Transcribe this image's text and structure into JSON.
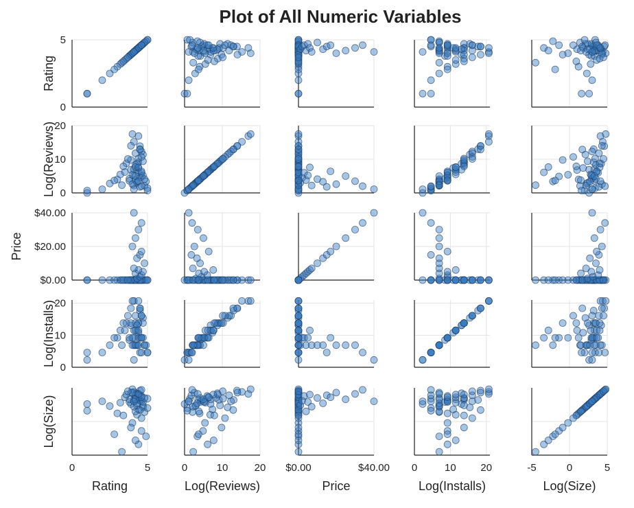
{
  "chart_data": {
    "type": "scatter",
    "subtype": "scatter-matrix",
    "title": "Plot of All Numeric Variables",
    "variables": [
      "Rating",
      "Log(Reviews)",
      "Price",
      "Log(Installs)",
      "Log(Size)"
    ],
    "ranges": {
      "Rating": [
        0,
        5
      ],
      "Log(Reviews)": [
        0,
        20
      ],
      "Price": [
        0,
        40
      ],
      "Log(Installs)": [
        0,
        21
      ],
      "Log(Size)": [
        -5,
        5
      ]
    },
    "row_ticks": [
      {
        "variable": "Rating",
        "ticks": [
          {
            "value": 0,
            "label": "0"
          },
          {
            "value": 5,
            "label": "5"
          }
        ]
      },
      {
        "variable": "Log(Reviews)",
        "ticks": [
          {
            "value": 0,
            "label": "0"
          },
          {
            "value": 10,
            "label": "10"
          },
          {
            "value": 20,
            "label": "20"
          }
        ]
      },
      {
        "variable": "Price",
        "ticks": [
          {
            "value": 0,
            "label": "$0.00"
          },
          {
            "value": 20,
            "label": "$20.00"
          },
          {
            "value": 40,
            "label": "$40.00"
          }
        ]
      },
      {
        "variable": "Log(Installs)",
        "ticks": [
          {
            "value": 0,
            "label": "0"
          },
          {
            "value": 10,
            "label": "10"
          },
          {
            "value": 20,
            "label": "20"
          }
        ]
      },
      {
        "variable": "Log(Size)",
        "ticks": []
      }
    ],
    "col_ticks": [
      {
        "variable": "Rating",
        "ticks": [
          {
            "value": 0,
            "label": "0"
          },
          {
            "value": 5,
            "label": "5"
          }
        ]
      },
      {
        "variable": "Log(Reviews)",
        "ticks": [
          {
            "value": 0,
            "label": "0"
          },
          {
            "value": 10,
            "label": "10"
          },
          {
            "value": 20,
            "label": "20"
          }
        ]
      },
      {
        "variable": "Price",
        "ticks": [
          {
            "value": 0,
            "label": "$0.00"
          },
          {
            "value": 40,
            "label": "$40.00"
          }
        ]
      },
      {
        "variable": "Log(Installs)",
        "ticks": [
          {
            "value": 0,
            "label": "0"
          },
          {
            "value": 10,
            "label": "10"
          },
          {
            "value": 20,
            "label": "20"
          }
        ]
      },
      {
        "variable": "Log(Size)",
        "ticks": [
          {
            "value": -5,
            "label": "-5"
          },
          {
            "value": 0,
            "label": "0"
          },
          {
            "value": 5,
            "label": "5"
          }
        ]
      }
    ],
    "marker_color": "#3a7dc0",
    "marker_edge": "#1f3f66",
    "grid": true,
    "legend": "none",
    "sample_points": [
      {
        "Rating": 4.1,
        "Log(Reviews)": 5.1,
        "Price": 0,
        "Log(Installs)": 9.2,
        "Log(Size)": 3.0
      },
      {
        "Rating": 3.9,
        "Log(Reviews)": 6.9,
        "Price": 0,
        "Log(Installs)": 13.1,
        "Log(Size)": 2.6
      },
      {
        "Rating": 4.7,
        "Log(Reviews)": 11.4,
        "Price": 0,
        "Log(Installs)": 15.4,
        "Log(Size)": 2.1
      },
      {
        "Rating": 4.5,
        "Log(Reviews)": 13.0,
        "Price": 0,
        "Log(Installs)": 17.7,
        "Log(Size)": 3.2
      },
      {
        "Rating": 4.3,
        "Log(Reviews)": 6.8,
        "Price": 0,
        "Log(Installs)": 11.5,
        "Log(Size)": 1.0
      },
      {
        "Rating": 4.4,
        "Log(Reviews)": 7.4,
        "Price": 0,
        "Log(Installs)": 10.8,
        "Log(Size)": 1.8
      },
      {
        "Rating": 3.8,
        "Log(Reviews)": 4.2,
        "Price": 0,
        "Log(Installs)": 8.5,
        "Log(Size)": 2.9
      },
      {
        "Rating": 4.1,
        "Log(Reviews)": 7.0,
        "Price": 0,
        "Log(Installs)": 11.5,
        "Log(Size)": 3.3
      },
      {
        "Rating": 4.4,
        "Log(Reviews)": 9.1,
        "Price": 0,
        "Log(Installs)": 13.8,
        "Log(Size)": 3.2
      },
      {
        "Rating": 4.7,
        "Log(Reviews)": 9.4,
        "Price": 0,
        "Log(Installs)": 13.8,
        "Log(Size)": 2.4
      },
      {
        "Rating": 4.4,
        "Log(Reviews)": 10.2,
        "Price": 0,
        "Log(Installs)": 13.8,
        "Log(Size)": 3.4
      },
      {
        "Rating": 3.8,
        "Log(Reviews)": 3.6,
        "Price": 0,
        "Log(Installs)": 9.2,
        "Log(Size)": 3.3
      },
      {
        "Rating": 4.2,
        "Log(Reviews)": 8.3,
        "Price": 0,
        "Log(Installs)": 13.8,
        "Log(Size)": 3.5
      },
      {
        "Rating": 4.6,
        "Log(Reviews)": 12.3,
        "Price": 0,
        "Log(Installs)": 16.1,
        "Log(Size)": 3.0
      },
      {
        "Rating": 4.0,
        "Log(Reviews)": 5.4,
        "Price": 0,
        "Log(Installs)": 9.2,
        "Log(Size)": -0.2
      },
      {
        "Rating": 4.3,
        "Log(Reviews)": 8.7,
        "Price": 0,
        "Log(Installs)": 13.1,
        "Log(Size)": 4.2
      },
      {
        "Rating": 4.5,
        "Log(Reviews)": 13.9,
        "Price": 0,
        "Log(Installs)": 18.4,
        "Log(Size)": 4.6
      },
      {
        "Rating": 4.1,
        "Log(Reviews)": 15.2,
        "Price": 0,
        "Log(Installs)": 20.7,
        "Log(Size)": 4.4
      },
      {
        "Rating": 4.4,
        "Log(Reviews)": 16.9,
        "Price": 0,
        "Log(Installs)": 20.7,
        "Log(Size)": 4.1
      },
      {
        "Rating": 4.0,
        "Log(Reviews)": 17.5,
        "Price": 0,
        "Log(Installs)": 20.7,
        "Log(Size)": 4.8
      },
      {
        "Rating": 3.9,
        "Log(Reviews)": 14.0,
        "Price": 0,
        "Log(Installs)": 18.4,
        "Log(Size)": 4.3
      },
      {
        "Rating": 4.2,
        "Log(Reviews)": 11.8,
        "Price": 0,
        "Log(Installs)": 16.1,
        "Log(Size)": 3.9
      },
      {
        "Rating": 4.8,
        "Log(Reviews)": 2.1,
        "Price": 0,
        "Log(Installs)": 6.9,
        "Log(Size)": 1.4
      },
      {
        "Rating": 5.0,
        "Log(Reviews)": 0.7,
        "Price": 0,
        "Log(Installs)": 4.6,
        "Log(Size)": 2.0
      },
      {
        "Rating": 5.0,
        "Log(Reviews)": 1.4,
        "Price": 0,
        "Log(Installs)": 4.6,
        "Log(Size)": 3.4
      },
      {
        "Rating": 1.0,
        "Log(Reviews)": 0.0,
        "Price": 0,
        "Log(Installs)": 2.3,
        "Log(Size)": 2.6
      },
      {
        "Rating": 1.0,
        "Log(Reviews)": 0.7,
        "Price": 0,
        "Log(Installs)": 4.6,
        "Log(Size)": 1.6
      },
      {
        "Rating": 2.0,
        "Log(Reviews)": 1.1,
        "Price": 0,
        "Log(Installs)": 4.6,
        "Log(Size)": 3.0
      },
      {
        "Rating": 2.5,
        "Log(Reviews)": 2.8,
        "Price": 0,
        "Log(Installs)": 6.9,
        "Log(Size)": 2.3
      },
      {
        "Rating": 3.0,
        "Log(Reviews)": 4.0,
        "Price": 0,
        "Log(Installs)": 9.2,
        "Log(Size)": 1.2
      },
      {
        "Rating": 3.2,
        "Log(Reviews)": 5.5,
        "Price": 0,
        "Log(Installs)": 11.5,
        "Log(Size)": 2.8
      },
      {
        "Rating": 3.5,
        "Log(Reviews)": 6.2,
        "Price": 0,
        "Log(Installs)": 11.5,
        "Log(Size)": 3.6
      },
      {
        "Rating": 3.6,
        "Log(Reviews)": 8.8,
        "Price": 0,
        "Log(Installs)": 13.8,
        "Log(Size)": 4.0
      },
      {
        "Rating": 4.6,
        "Log(Reviews)": 4.9,
        "Price": 0,
        "Log(Installs)": 9.2,
        "Log(Size)": -1.4
      },
      {
        "Rating": 4.9,
        "Log(Reviews)": 3.4,
        "Price": 0,
        "Log(Installs)": 6.9,
        "Log(Size)": -2.2
      },
      {
        "Rating": 4.4,
        "Log(Reviews)": 6.1,
        "Price": 0,
        "Log(Installs)": 9.2,
        "Log(Size)": -3.4
      },
      {
        "Rating": 4.2,
        "Log(Reviews)": 7.7,
        "Price": 0,
        "Log(Installs)": 11.5,
        "Log(Size)": -2.8
      },
      {
        "Rating": 3.9,
        "Log(Reviews)": 9.8,
        "Price": 0,
        "Log(Installs)": 13.8,
        "Log(Size)": -0.9
      },
      {
        "Rating": 4.6,
        "Log(Reviews)": 10.7,
        "Price": 0,
        "Log(Installs)": 16.1,
        "Log(Size)": 0.5
      },
      {
        "Rating": 4.5,
        "Log(Reviews)": 12.9,
        "Price": 0,
        "Log(Installs)": 18.4,
        "Log(Size)": 1.7
      },
      {
        "Rating": 4.3,
        "Log(Reviews)": 3.0,
        "Price": 0.99,
        "Log(Installs)": 6.9,
        "Log(Size)": 2.4
      },
      {
        "Rating": 4.5,
        "Log(Reviews)": 4.5,
        "Price": 1.99,
        "Log(Installs)": 9.2,
        "Log(Size)": 3.1
      },
      {
        "Rating": 4.6,
        "Log(Reviews)": 6.0,
        "Price": 2.99,
        "Log(Installs)": 9.2,
        "Log(Size)": 3.8
      },
      {
        "Rating": 4.2,
        "Log(Reviews)": 3.8,
        "Price": 3.99,
        "Log(Installs)": 6.9,
        "Log(Size)": 1.5
      },
      {
        "Rating": 4.7,
        "Log(Reviews)": 5.2,
        "Price": 4.99,
        "Log(Installs)": 9.2,
        "Log(Size)": 2.9
      },
      {
        "Rating": 4.4,
        "Log(Reviews)": 7.6,
        "Price": 5.99,
        "Log(Installs)": 11.5,
        "Log(Size)": 4.0
      },
      {
        "Rating": 4.1,
        "Log(Reviews)": 2.2,
        "Price": 6.99,
        "Log(Installs)": 6.9,
        "Log(Size)": 2.2
      },
      {
        "Rating": 4.8,
        "Log(Reviews)": 4.1,
        "Price": 9.99,
        "Log(Installs)": 6.9,
        "Log(Size)": 3.5
      },
      {
        "Rating": 4.3,
        "Log(Reviews)": 3.3,
        "Price": 12.99,
        "Log(Installs)": 6.9,
        "Log(Size)": 2.7
      },
      {
        "Rating": 4.5,
        "Log(Reviews)": 1.8,
        "Price": 14.99,
        "Log(Installs)": 4.6,
        "Log(Size)": 3.9
      },
      {
        "Rating": 4.6,
        "Log(Reviews)": 6.4,
        "Price": 16.99,
        "Log(Installs)": 9.2,
        "Log(Size)": 3.6
      },
      {
        "Rating": 4.0,
        "Log(Reviews)": 2.6,
        "Price": 19.99,
        "Log(Installs)": 6.9,
        "Log(Size)": 4.3
      },
      {
        "Rating": 4.2,
        "Log(Reviews)": 5.0,
        "Price": 24.99,
        "Log(Installs)": 6.9,
        "Log(Size)": 3.3
      },
      {
        "Rating": 4.4,
        "Log(Reviews)": 3.5,
        "Price": 29.99,
        "Log(Installs)": 6.9,
        "Log(Size)": 4.1
      },
      {
        "Rating": 4.6,
        "Log(Reviews)": 2.0,
        "Price": 33.99,
        "Log(Installs)": 4.6,
        "Log(Size)": 4.7
      },
      {
        "Rating": 4.1,
        "Log(Reviews)": 1.1,
        "Price": 39.99,
        "Log(Installs)": 2.3,
        "Log(Size)": 3.0
      },
      {
        "Rating": 3.3,
        "Log(Reviews)": 2.3,
        "Price": 0,
        "Log(Installs)": 6.9,
        "Log(Size)": -4.5
      },
      {
        "Rating": 2.8,
        "Log(Reviews)": 3.7,
        "Price": 0,
        "Log(Installs)": 9.2,
        "Log(Size)": -1.9
      },
      {
        "Rating": 3.4,
        "Log(Reviews)": 7.9,
        "Price": 0,
        "Log(Installs)": 13.8,
        "Log(Size)": 0.9
      },
      {
        "Rating": 3.7,
        "Log(Reviews)": 10.1,
        "Price": 0,
        "Log(Installs)": 16.1,
        "Log(Size)": 4.5
      }
    ]
  }
}
